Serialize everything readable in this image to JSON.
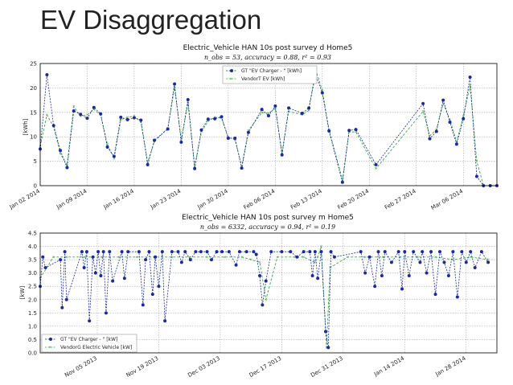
{
  "slide": {
    "title": "EV Disaggregation"
  },
  "colors": {
    "gt": "#1a2a9c",
    "vendor": "#3aa84a",
    "grid": "#9a9a9a"
  },
  "chart_data": [
    {
      "type": "line",
      "title": "Electric_Vehicle HAN 10s post survey d Home5",
      "subtitle": "n_obs = 53, accuracy = 0.88, r² = 0.93",
      "ylabel": "[kWh]",
      "xlabel": "",
      "ylim": [
        0,
        25
      ],
      "yticks": [
        0,
        5,
        10,
        15,
        20,
        25
      ],
      "xlim": [
        "2014-01-02",
        "2014-03-11"
      ],
      "xticks": [
        "Jan 02 2014",
        "Jan 09 2014",
        "Jan 16 2014",
        "Jan 23 2014",
        "Jan 30 2014",
        "Feb 06 2014",
        "Feb 13 2014",
        "Feb 20 2014",
        "Feb 27 2014",
        "Mar 06 2014"
      ],
      "grid": true,
      "legend_position": "top-center",
      "x": [
        "2014-01-02",
        "2014-01-03",
        "2014-01-04",
        "2014-01-05",
        "2014-01-06",
        "2014-01-07",
        "2014-01-08",
        "2014-01-09",
        "2014-01-10",
        "2014-01-11",
        "2014-01-12",
        "2014-01-13",
        "2014-01-14",
        "2014-01-15",
        "2014-01-16",
        "2014-01-17",
        "2014-01-18",
        "2014-01-19",
        "2014-01-21",
        "2014-01-22",
        "2014-01-23",
        "2014-01-24",
        "2014-01-25",
        "2014-01-26",
        "2014-01-27",
        "2014-01-28",
        "2014-01-29",
        "2014-01-30",
        "2014-01-31",
        "2014-02-01",
        "2014-02-02",
        "2014-02-04",
        "2014-02-05",
        "2014-02-06",
        "2014-02-07",
        "2014-02-08",
        "2014-02-10",
        "2014-02-11",
        "2014-02-12",
        "2014-02-13",
        "2014-02-14",
        "2014-02-16",
        "2014-02-17",
        "2014-02-18",
        "2014-02-21",
        "2014-02-28",
        "2014-03-01",
        "2014-03-02",
        "2014-03-03",
        "2014-03-04",
        "2014-03-05",
        "2014-03-06",
        "2014-03-07",
        "2014-03-08",
        "2014-03-09",
        "2014-03-10",
        "2014-03-11"
      ],
      "series": [
        {
          "name": "GT \"EV Charger - \" [kWh]",
          "values": [
            7.5,
            22.7,
            12.3,
            7.2,
            3.7,
            15.3,
            14.6,
            13.8,
            16.0,
            14.7,
            7.9,
            6.0,
            14.0,
            13.5,
            13.9,
            13.4,
            4.3,
            9.3,
            11.6,
            20.8,
            8.9,
            17.6,
            3.5,
            11.4,
            13.6,
            13.7,
            14.1,
            9.7,
            9.7,
            3.6,
            10.9,
            15.6,
            14.3,
            16.3,
            6.3,
            15.9,
            14.8,
            15.9,
            22.8,
            19.0,
            11.2,
            0.7,
            11.3,
            11.5,
            4.3,
            16.8,
            9.6,
            11.1,
            17.5,
            13.0,
            8.5,
            13.7,
            22.2,
            1.9,
            0,
            0,
            0
          ]
        },
        {
          "name": "VendorT EV [kWh]",
          "values": [
            8.0,
            14.5,
            12.0,
            6.5,
            4.2,
            16.2,
            14.2,
            14.5,
            15.6,
            14.5,
            8.5,
            5.5,
            13.5,
            14.0,
            14.2,
            13.0,
            4.8,
            9.0,
            11.8,
            20.0,
            9.5,
            16.8,
            4.0,
            11.0,
            13.2,
            14.0,
            13.8,
            9.9,
            9.4,
            4.0,
            11.3,
            15.0,
            14.8,
            15.8,
            6.8,
            15.2,
            14.5,
            15.4,
            23.8,
            19.5,
            11.5,
            1.2,
            11.0,
            11.0,
            3.5,
            15.2,
            10.2,
            11.5,
            16.8,
            13.5,
            9.0,
            14.2,
            20.5,
            5.0,
            0,
            0,
            0
          ]
        }
      ]
    },
    {
      "type": "line",
      "title": "Electric_Vehicle HAN 10s post survey m Home5",
      "subtitle": "n_obs = 6332, accuracy = 0.94, r² = 0.19",
      "ylabel": "[kW]",
      "xlabel": "",
      "ylim": [
        0,
        4.5
      ],
      "yticks": [
        "0.0",
        "0.5",
        "1.0",
        "1.5",
        "2.0",
        "2.5",
        "3.0",
        "3.5",
        "4.0",
        "4.5"
      ],
      "xlim": [
        "2013-10-23",
        "2014-02-04"
      ],
      "xticks": [
        "Nov 05 2013",
        "Nov 19 2013",
        "Dec 03 2013",
        "Dec 17 2013",
        "Dec 31 2013",
        "Jan 14 2014",
        "Jan 28 2014"
      ],
      "grid": true,
      "legend_position": "bottom-left",
      "series": [
        {
          "name": "GT \"EV Charger - \" [kW]",
          "x": [
            0,
            0.6,
            1.2,
            4.6,
            5.0,
            5.6,
            6.0,
            9.5,
            10.0,
            10.6,
            11.2,
            12.0,
            12.6,
            13.2,
            13.8,
            14.4,
            15.0,
            15.8,
            16.5,
            18.6,
            19.2,
            20.0,
            22.5,
            23.4,
            24.0,
            24.8,
            25.6,
            26.2,
            27.0,
            27.8,
            28.4,
            30.0,
            31.4,
            32.2,
            33.0,
            34.2,
            35.4,
            36.6,
            38.0,
            39.0,
            40.2,
            41.4,
            43.0,
            44.6,
            45.4,
            47.0,
            48.6,
            49.2,
            50.0,
            50.6,
            51.4,
            52.6,
            55.0,
            57.0,
            58.5,
            60.0,
            61.4,
            62.0,
            62.6,
            63.2,
            64.0,
            65.0,
            65.6,
            66.2,
            67.0,
            73.0,
            74.0,
            75.0,
            76.2,
            77.0,
            77.8,
            78.5,
            80.0,
            81.6,
            82.4,
            83.0,
            84.0,
            85.0,
            86.5,
            87.0,
            88.0,
            89.0,
            90.0,
            91.0,
            92.0,
            93.0,
            94.0,
            95.0,
            96.0,
            97.0,
            98.0,
            99.0,
            100.5,
            102.0
          ],
          "values": [
            2.5,
            3.6,
            3.2,
            3.5,
            1.7,
            3.8,
            2.0,
            3.8,
            3.2,
            3.8,
            1.2,
            3.6,
            3.0,
            3.8,
            2.9,
            3.8,
            1.5,
            3.8,
            2.7,
            3.8,
            2.8,
            3.8,
            3.8,
            1.8,
            3.5,
            3.8,
            2.2,
            3.6,
            2.5,
            3.8,
            1.2,
            3.8,
            3.8,
            3.4,
            3.8,
            3.5,
            3.8,
            3.8,
            3.8,
            3.5,
            3.8,
            3.8,
            3.8,
            3.3,
            3.8,
            3.8,
            3.8,
            3.7,
            2.9,
            1.8,
            2.7,
            3.8,
            3.8,
            3.8,
            3.6,
            3.8,
            3.8,
            2.9,
            3.8,
            2.8,
            3.8,
            0.8,
            0.2,
            3.8,
            3.6,
            3.8,
            3.0,
            3.6,
            2.5,
            3.8,
            2.9,
            3.8,
            3.4,
            3.8,
            2.4,
            3.8,
            2.9,
            3.8,
            3.4,
            3.8,
            3.0,
            3.8,
            2.2,
            3.8,
            3.4,
            2.9,
            3.8,
            2.1,
            3.8,
            3.4,
            3.8,
            3.2,
            3.8,
            3.4
          ]
        },
        {
          "name": "VendorG Electric Vehicle [kW]",
          "x": [
            0,
            3.0,
            6.0,
            10.0,
            14.0,
            18.0,
            22.0,
            26.0,
            30.0,
            34.0,
            38.0,
            42.0,
            46.0,
            48.0,
            50.0,
            51.4,
            54.0,
            58.0,
            60.0,
            62.5,
            63.2,
            64.0,
            65.2,
            66.0,
            70.0,
            74.0,
            78.0,
            82.0,
            86.0,
            90.0,
            94.0,
            98.0,
            102.0
          ],
          "values": [
            2.8,
            3.6,
            3.6,
            3.6,
            3.6,
            3.6,
            3.6,
            3.6,
            3.6,
            3.6,
            3.6,
            3.6,
            3.6,
            3.5,
            3.4,
            2.0,
            3.6,
            3.6,
            3.6,
            3.4,
            3.6,
            4.0,
            0.2,
            3.2,
            3.6,
            3.6,
            3.6,
            3.6,
            3.6,
            3.6,
            3.5,
            3.6,
            3.5
          ]
        }
      ]
    }
  ]
}
